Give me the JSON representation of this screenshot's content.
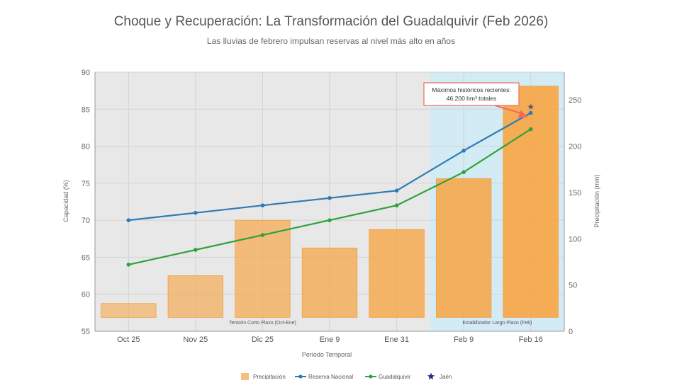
{
  "chart_data": {
    "type": "bar",
    "title": "Choque y Recuperación: La Transformación del Guadalquivir (Feb 2026)",
    "subtitle": "Las lluvias de febrero impulsan reservas al nivel más alto en años",
    "xlabel": "Periodo Temporal",
    "ylabel": "Capacidad (%)",
    "y2label": "Precipitación (mm)",
    "ylim": [
      55,
      90
    ],
    "y2lim": [
      0,
      280
    ],
    "yticks": [
      55,
      60,
      65,
      70,
      75,
      80,
      85,
      90
    ],
    "y2ticks": [
      0,
      50,
      100,
      150,
      200,
      250
    ],
    "categories": [
      "Oct 25",
      "Nov 25",
      "Dic 25",
      "Ene 9",
      "Ene 31",
      "Feb 9",
      "Feb 16"
    ],
    "bars": {
      "name": "Precipitación",
      "axis": "right",
      "values": [
        30,
        60,
        120,
        90,
        110,
        165,
        265
      ],
      "color": "#f5a94e"
    },
    "series": [
      {
        "name": "Reserva Nacional",
        "axis": "left",
        "color": "#2f7bb5",
        "values": [
          70,
          71,
          72,
          73,
          74,
          79.4,
          84.5
        ]
      },
      {
        "name": "Guadalquivir",
        "axis": "left",
        "color": "#2fa23a",
        "values": [
          64,
          66,
          68,
          70,
          72,
          76.5,
          82.3
        ]
      }
    ],
    "points": [
      {
        "name": "Jaén",
        "category": "Feb 16",
        "value": 85.3,
        "color": "#1f2d7a",
        "marker": "star"
      }
    ],
    "regions": [
      {
        "label": "Tensión Corto Plazo (Oct-Ene)",
        "from": "Oct 25",
        "to": "Ene 31",
        "color": "#e8e8e8"
      },
      {
        "label": "Estabilizador Largo Plazo (Feb)",
        "from": "Feb 9",
        "to": "Feb 16",
        "color": "#d3ebf4"
      }
    ],
    "annotation": {
      "line1": "Máximos históricos recientes:",
      "line2": "46.200 hm³ totales",
      "target_category": "Feb 16",
      "target_value": 84.5,
      "color": "#f26b5b"
    },
    "legend": {
      "position": "bottom",
      "items": [
        {
          "label": "Precipitación",
          "kind": "bar",
          "color": "#f5a94e"
        },
        {
          "label": "Reserva Nacional",
          "kind": "line",
          "color": "#2f7bb5"
        },
        {
          "label": "Guadalquivir",
          "kind": "line",
          "color": "#2fa23a"
        },
        {
          "label": "Jaén",
          "kind": "star",
          "color": "#1f2d7a"
        }
      ]
    },
    "grid": true
  }
}
